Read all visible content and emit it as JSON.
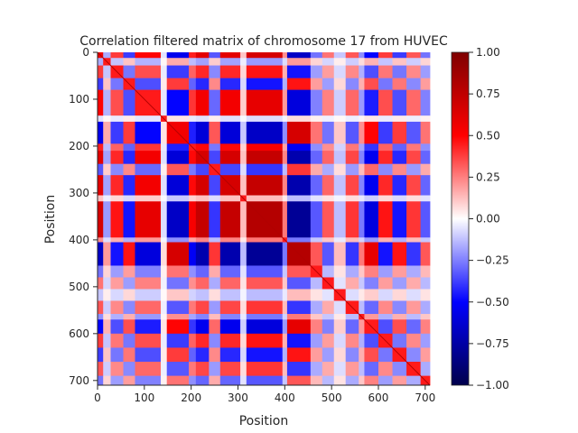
{
  "chart_data": {
    "type": "heatmap",
    "title": "Correlation filtered matrix of chromosome 17 from HUVEC",
    "xlabel": "Position",
    "ylabel": "Position",
    "size": 710,
    "xlim": [
      0,
      710
    ],
    "ylim": [
      710,
      0
    ],
    "xticks": [
      0,
      100,
      200,
      300,
      400,
      500,
      600,
      700
    ],
    "yticks": [
      0,
      100,
      200,
      300,
      400,
      500,
      600,
      700
    ],
    "colorscale": "seismic",
    "colorbar": {
      "range": [
        -1.0,
        1.0
      ],
      "ticks": [
        "1.00",
        "0.75",
        "0.50",
        "0.25",
        "0.00",
        "−0.25",
        "−0.50",
        "−0.75",
        "−1.00"
      ]
    },
    "blocks": [
      {
        "start": 0,
        "end": 12,
        "v": 0.5
      },
      {
        "start": 12,
        "end": 28,
        "v": -0.15
      },
      {
        "start": 28,
        "end": 55,
        "v": 0.35
      },
      {
        "start": 55,
        "end": 80,
        "v": -0.35
      },
      {
        "start": 80,
        "end": 135,
        "v": 0.45
      },
      {
        "start": 135,
        "end": 148,
        "v": -0.05
      },
      {
        "start": 148,
        "end": 195,
        "v": -0.5
      },
      {
        "start": 195,
        "end": 210,
        "v": 0.4
      },
      {
        "start": 210,
        "end": 238,
        "v": 0.55
      },
      {
        "start": 238,
        "end": 262,
        "v": -0.3
      },
      {
        "start": 262,
        "end": 305,
        "v": 0.55
      },
      {
        "start": 305,
        "end": 318,
        "v": 0.1
      },
      {
        "start": 318,
        "end": 395,
        "v": 0.6
      },
      {
        "start": 395,
        "end": 405,
        "v": 0.2
      },
      {
        "start": 405,
        "end": 455,
        "v": -0.6
      },
      {
        "start": 455,
        "end": 480,
        "v": -0.25
      },
      {
        "start": 480,
        "end": 505,
        "v": 0.25
      },
      {
        "start": 505,
        "end": 530,
        "v": -0.1
      },
      {
        "start": 530,
        "end": 558,
        "v": 0.3
      },
      {
        "start": 558,
        "end": 570,
        "v": -0.2
      },
      {
        "start": 570,
        "end": 600,
        "v": -0.45
      },
      {
        "start": 600,
        "end": 630,
        "v": 0.35
      },
      {
        "start": 630,
        "end": 660,
        "v": -0.35
      },
      {
        "start": 660,
        "end": 690,
        "v": 0.3
      },
      {
        "start": 690,
        "end": 710,
        "v": -0.25
      }
    ]
  }
}
